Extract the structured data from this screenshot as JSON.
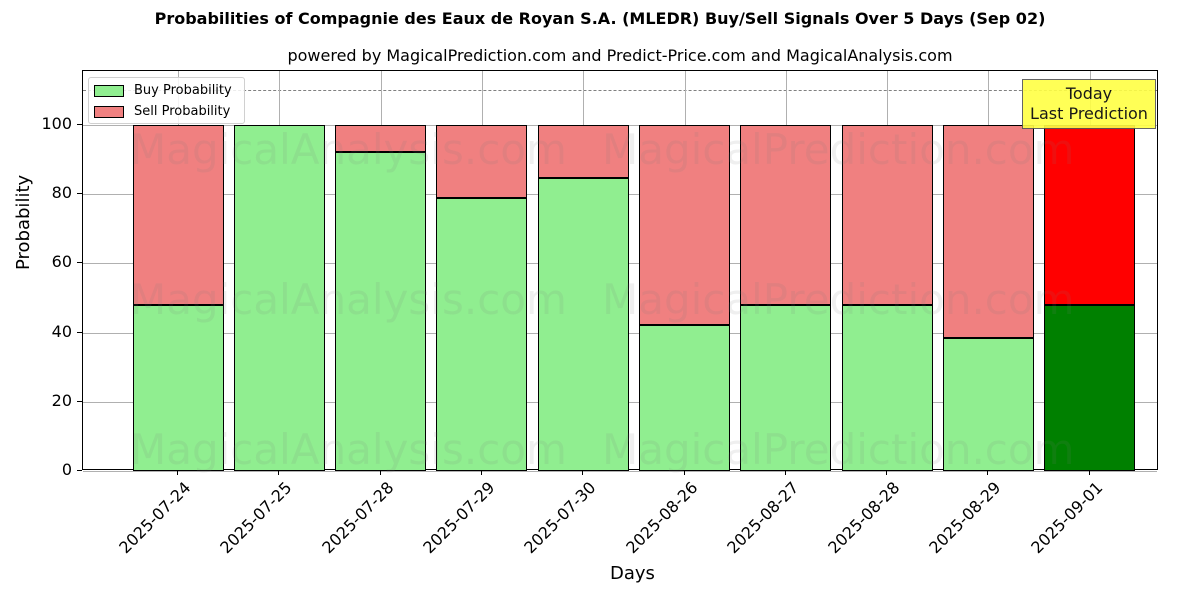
{
  "title": "Probabilities of Compagnie des Eaux de Royan S.A. (MLEDR) Buy/Sell Signals Over 5 Days (Sep 02)",
  "subtitle": "powered by MagicalPrediction.com and Predict-Price.com and MagicalAnalysis.com",
  "legend": {
    "buy": "Buy Probability",
    "sell": "Sell Probability"
  },
  "annotation": {
    "line1": "Today",
    "line2": "Last Prediction"
  },
  "watermarks": [
    "MagicalAnalysis.com",
    "MagicalPrediction.com"
  ],
  "colors": {
    "buy": "#90ee90",
    "sell": "#f08080",
    "today_buy": "#008000",
    "today_sell": "#ff0000",
    "annotation_bg": "#ffff44"
  },
  "chart_data": {
    "type": "bar",
    "stacked": true,
    "title": "Probabilities of Compagnie des Eaux de Royan S.A. (MLEDR) Buy/Sell Signals Over 5 Days (Sep 02)",
    "subtitle": "powered by MagicalPrediction.com and Predict-Price.com and MagicalAnalysis.com",
    "xlabel": "Days",
    "ylabel": "Probability",
    "ylim": [
      0,
      115
    ],
    "yticks": [
      0,
      20,
      40,
      60,
      80,
      100
    ],
    "reference_line": 110,
    "grid": true,
    "legend_position": "upper left",
    "categories": [
      "2025-07-24",
      "2025-07-25",
      "2025-07-28",
      "2025-07-29",
      "2025-07-30",
      "2025-08-26",
      "2025-08-27",
      "2025-08-28",
      "2025-08-29",
      "2025-09-01"
    ],
    "series": [
      {
        "name": "Buy Probability",
        "values": [
          48.0,
          100.0,
          92.3,
          79.0,
          84.8,
          42.2,
          48.0,
          48.0,
          38.3,
          48.0
        ]
      },
      {
        "name": "Sell Probability",
        "values": [
          52.0,
          0.0,
          7.7,
          21.0,
          15.2,
          57.8,
          52.0,
          52.0,
          61.7,
          52.0
        ]
      }
    ],
    "annotations": [
      {
        "text": "Today\nLast Prediction",
        "x": "2025-09-01"
      }
    ]
  }
}
